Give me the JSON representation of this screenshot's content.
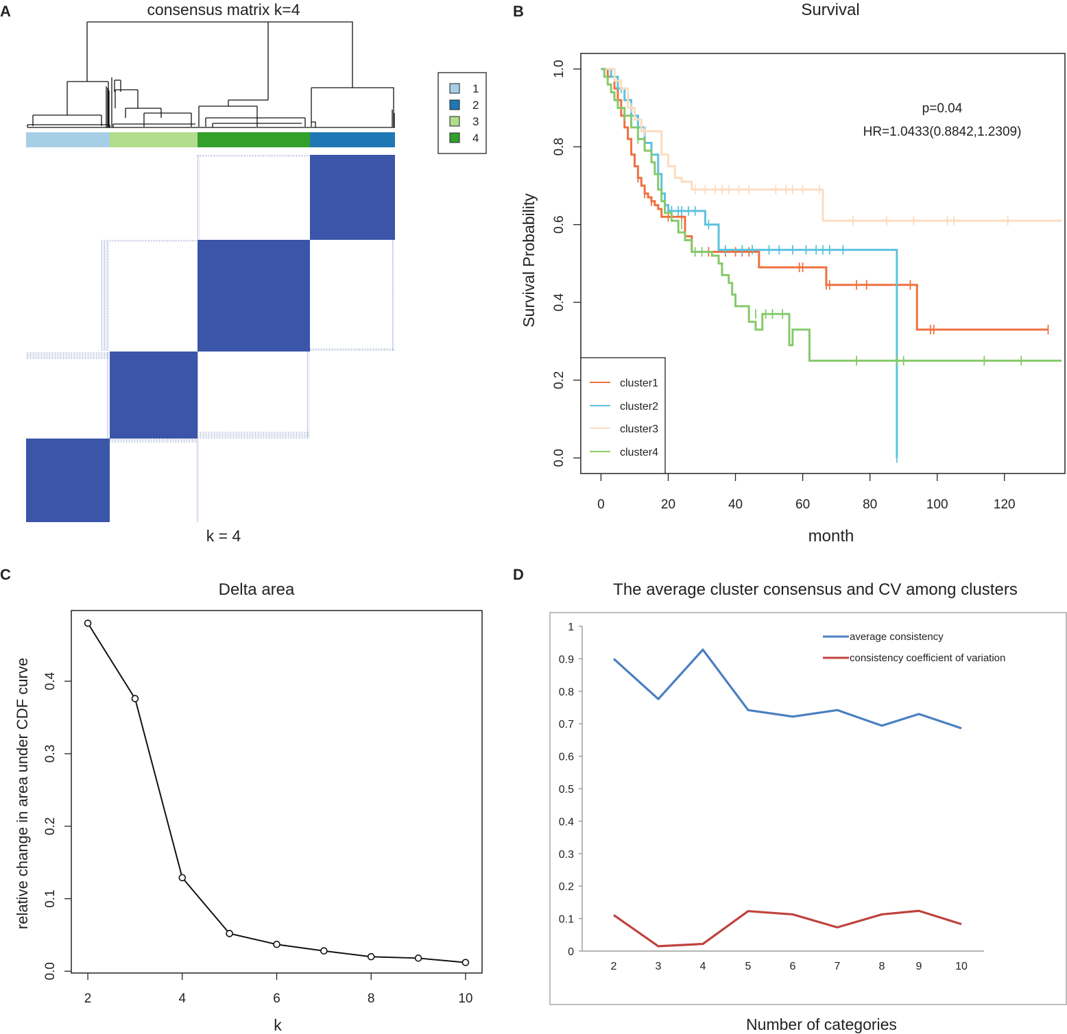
{
  "panels": {
    "A": {
      "letter": "A",
      "title": "consensus matrix k=4",
      "footer": "k = 4"
    },
    "B": {
      "letter": "B"
    },
    "C": {
      "letter": "C"
    },
    "D": {
      "letter": "D"
    }
  },
  "colors": {
    "matrix_blue": "#3b55a8",
    "cluster1": "#a6cfe6",
    "cluster2": "#1f78b4",
    "cluster3": "#b2dd8c",
    "cluster4": "#33a02c",
    "km_cluster1": "#ef7040",
    "km_cluster2": "#5bc3dc",
    "km_cluster3": "#fcdcc0",
    "km_cluster4": "#86c96b",
    "avg_line": "#4a7fc1",
    "cv_line": "#c0423d"
  },
  "chart_data": [
    {
      "type": "heatmap",
      "panel": "A",
      "title": "consensus matrix k=4",
      "xlabel": "k = 4",
      "clusters_order_left_to_right": [
        "1",
        "3",
        "4",
        "2"
      ],
      "cluster_sizes": [
        61,
        64,
        82,
        63
      ],
      "legend": [
        "1",
        "2",
        "3",
        "4"
      ],
      "legend_colors": [
        "#a6cfe6",
        "#1f78b4",
        "#b2dd8c",
        "#33a02c"
      ]
    },
    {
      "type": "line",
      "panel": "B",
      "title": "Survival",
      "xlabel": "month",
      "ylabel": "Survival Probability",
      "xlim": [
        -6,
        138
      ],
      "ylim": [
        -0.04,
        1.04
      ],
      "xticks": [
        "0",
        "20",
        "40",
        "60",
        "80",
        "100",
        "120"
      ],
      "yticks": [
        "0.0",
        "0.2",
        "0.4",
        "0.6",
        "0.8",
        "1.0"
      ],
      "annotations": [
        "p=0.04",
        "HR=1.0433(0.8842,1.2309)"
      ],
      "legend": [
        "cluster1",
        "cluster2",
        "cluster3",
        "cluster4"
      ],
      "series": [
        {
          "name": "cluster1",
          "color": "#ef7040",
          "steps": [
            [
              0,
              1
            ],
            [
              2,
              0.98
            ],
            [
              4,
              0.95
            ],
            [
              5,
              0.92
            ],
            [
              6,
              0.88
            ],
            [
              7,
              0.85
            ],
            [
              8,
              0.82
            ],
            [
              9,
              0.78
            ],
            [
              10,
              0.75
            ],
            [
              11,
              0.72
            ],
            [
              12,
              0.7
            ],
            [
              13,
              0.68
            ],
            [
              14,
              0.67
            ],
            [
              15,
              0.66
            ],
            [
              16,
              0.65
            ],
            [
              17,
              0.64
            ],
            [
              18,
              0.62
            ],
            [
              25,
              0.57
            ],
            [
              27,
              0.53
            ],
            [
              35,
              0.53
            ],
            [
              47,
              0.49
            ],
            [
              67,
              0.445
            ],
            [
              94,
              0.33
            ],
            [
              133,
              0.33
            ]
          ],
          "censor": [
            [
              11,
              0.72
            ],
            [
              13,
              0.68
            ],
            [
              15,
              0.66
            ],
            [
              20,
              0.62
            ],
            [
              24,
              0.62
            ],
            [
              32,
              0.53
            ],
            [
              37,
              0.53
            ],
            [
              40,
              0.53
            ],
            [
              42,
              0.53
            ],
            [
              44,
              0.53
            ],
            [
              59,
              0.49
            ],
            [
              60,
              0.49
            ],
            [
              67,
              0.445
            ],
            [
              68,
              0.445
            ],
            [
              76,
              0.445
            ],
            [
              79,
              0.445
            ],
            [
              92,
              0.445
            ],
            [
              98,
              0.33
            ],
            [
              99,
              0.33
            ],
            [
              133,
              0.33
            ]
          ]
        },
        {
          "name": "cluster2",
          "color": "#5bc3dc",
          "steps": [
            [
              0,
              1
            ],
            [
              3,
              0.98
            ],
            [
              5,
              0.95
            ],
            [
              7,
              0.92
            ],
            [
              9,
              0.88
            ],
            [
              11,
              0.85
            ],
            [
              13,
              0.81
            ],
            [
              15,
              0.78
            ],
            [
              17,
              0.73
            ],
            [
              18,
              0.68
            ],
            [
              19,
              0.65
            ],
            [
              20,
              0.635
            ],
            [
              31,
              0.6
            ],
            [
              35,
              0.535
            ],
            [
              88,
              0.535
            ],
            [
              88,
              0
            ]
          ],
          "censor": [
            [
              4,
              0.98
            ],
            [
              6,
              0.95
            ],
            [
              9,
              0.9
            ],
            [
              13,
              0.81
            ],
            [
              17,
              0.75
            ],
            [
              21,
              0.635
            ],
            [
              23,
              0.635
            ],
            [
              24,
              0.635
            ],
            [
              26,
              0.635
            ],
            [
              28,
              0.635
            ],
            [
              32,
              0.6
            ],
            [
              37,
              0.535
            ],
            [
              42,
              0.535
            ],
            [
              45,
              0.535
            ],
            [
              50,
              0.535
            ],
            [
              53,
              0.535
            ],
            [
              57,
              0.535
            ],
            [
              61,
              0.535
            ],
            [
              64,
              0.535
            ],
            [
              66,
              0.535
            ],
            [
              68,
              0.535
            ],
            [
              72,
              0.535
            ],
            [
              88,
              0
            ]
          ]
        },
        {
          "name": "cluster3",
          "color": "#fcdcc0",
          "steps": [
            [
              0,
              1
            ],
            [
              4,
              0.97
            ],
            [
              6,
              0.95
            ],
            [
              8,
              0.9
            ],
            [
              10,
              0.87
            ],
            [
              12,
              0.84
            ],
            [
              18,
              0.78
            ],
            [
              20,
              0.75
            ],
            [
              22,
              0.72
            ],
            [
              24,
              0.71
            ],
            [
              27,
              0.69
            ],
            [
              66,
              0.69
            ],
            [
              66,
              0.61
            ],
            [
              137,
              0.61
            ]
          ],
          "censor": [
            [
              6,
              0.96
            ],
            [
              9,
              0.9
            ],
            [
              13,
              0.84
            ],
            [
              28,
              0.69
            ],
            [
              31,
              0.69
            ],
            [
              34,
              0.69
            ],
            [
              36,
              0.69
            ],
            [
              38,
              0.69
            ],
            [
              41,
              0.69
            ],
            [
              44,
              0.69
            ],
            [
              52,
              0.69
            ],
            [
              55,
              0.69
            ],
            [
              57,
              0.69
            ],
            [
              60,
              0.69
            ],
            [
              65,
              0.69
            ],
            [
              75,
              0.61
            ],
            [
              85,
              0.61
            ],
            [
              93,
              0.61
            ],
            [
              103,
              0.61
            ],
            [
              105,
              0.61
            ],
            [
              121,
              0.61
            ]
          ]
        },
        {
          "name": "cluster4",
          "color": "#86c96b",
          "steps": [
            [
              0,
              1
            ],
            [
              1,
              0.98
            ],
            [
              2,
              0.96
            ],
            [
              3,
              0.94
            ],
            [
              4,
              0.92
            ],
            [
              5,
              0.9
            ],
            [
              7,
              0.88
            ],
            [
              9,
              0.85
            ],
            [
              11,
              0.82
            ],
            [
              13,
              0.79
            ],
            [
              15,
              0.76
            ],
            [
              16,
              0.73
            ],
            [
              17,
              0.69
            ],
            [
              18,
              0.66
            ],
            [
              19,
              0.63
            ],
            [
              21,
              0.61
            ],
            [
              23,
              0.58
            ],
            [
              25,
              0.56
            ],
            [
              27,
              0.53
            ],
            [
              33,
              0.52
            ],
            [
              35,
              0.5
            ],
            [
              36,
              0.47
            ],
            [
              38,
              0.45
            ],
            [
              39,
              0.42
            ],
            [
              40,
              0.39
            ],
            [
              44,
              0.35
            ],
            [
              46,
              0.33
            ],
            [
              48,
              0.37
            ],
            [
              50,
              0.37
            ],
            [
              53,
              0.37
            ],
            [
              56,
              0.29
            ],
            [
              57,
              0.33
            ],
            [
              62,
              0.25
            ],
            [
              137,
              0.25
            ]
          ],
          "censor": [
            [
              4,
              0.93
            ],
            [
              7,
              0.88
            ],
            [
              11,
              0.82
            ],
            [
              17,
              0.71
            ],
            [
              24,
              0.6
            ],
            [
              28,
              0.53
            ],
            [
              30,
              0.53
            ],
            [
              36,
              0.49
            ],
            [
              46,
              0.37
            ],
            [
              49,
              0.37
            ],
            [
              51,
              0.37
            ],
            [
              54,
              0.37
            ],
            [
              76,
              0.25
            ],
            [
              88,
              0.25
            ],
            [
              90,
              0.25
            ],
            [
              114,
              0.25
            ],
            [
              125,
              0.25
            ]
          ]
        }
      ]
    },
    {
      "type": "line",
      "panel": "C",
      "title": "Delta area",
      "xlabel": "k",
      "ylabel": "relative change in area under CDF curve",
      "x": [
        2,
        3,
        4,
        5,
        6,
        7,
        8,
        9,
        10
      ],
      "values": [
        0.48,
        0.376,
        0.129,
        0.052,
        0.037,
        0.028,
        0.02,
        0.018,
        0.012
      ],
      "xlim": [
        1.65,
        10.35
      ],
      "ylim": [
        -0.0025,
        0.4975
      ],
      "xticks": [
        "2",
        "4",
        "6",
        "8",
        "10"
      ],
      "yticks": [
        "0.0",
        "0.1",
        "0.2",
        "0.3",
        "0.4"
      ]
    },
    {
      "type": "line",
      "panel": "D",
      "title": "The average cluster consensus and CV among clusters",
      "xlabel": "Number of categories",
      "categories": [
        "2",
        "3",
        "4",
        "5",
        "6",
        "7",
        "8",
        "9",
        "10"
      ],
      "ylim": [
        0,
        1
      ],
      "yticks": [
        "0",
        "0.1",
        "0.2",
        "0.3",
        "0.4",
        "0.5",
        "0.6",
        "0.7",
        "0.8",
        "0.9",
        "1"
      ],
      "series": [
        {
          "name": "average consistency",
          "color": "#4a7fc1",
          "values": [
            0.9,
            0.776,
            0.928,
            0.742,
            0.722,
            0.742,
            0.694,
            0.73,
            0.686
          ]
        },
        {
          "name": "consistency coefficient of variation",
          "color": "#c0423d",
          "values": [
            0.111,
            0.015,
            0.022,
            0.123,
            0.113,
            0.073,
            0.113,
            0.124,
            0.083
          ]
        }
      ]
    }
  ]
}
